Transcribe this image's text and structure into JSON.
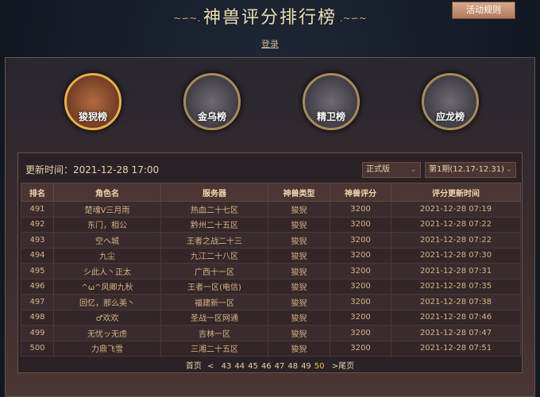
{
  "header": {
    "title": "神兽评分排行榜",
    "rules_button": "活动规则",
    "login": "登录"
  },
  "beasts": [
    {
      "label": "狻猊榜",
      "active": true
    },
    {
      "label": "金乌榜"
    },
    {
      "label": "精卫榜"
    },
    {
      "label": "应龙榜"
    }
  ],
  "panel": {
    "update_time": "更新时间：2021-12-28 17:00",
    "version_select": "正式版",
    "period_select": "第1期(12.17-12.31)"
  },
  "table": {
    "headers": [
      "排名",
      "角色名",
      "服务器",
      "神兽类型",
      "神兽评分",
      "评分更新时间"
    ],
    "rows": [
      [
        "491",
        "楚魂V三月雨",
        "热血二十七区",
        "狻猊",
        "3200",
        "2021-12-28 07:19"
      ],
      [
        "492",
        "东门，相公",
        "黔州二十五区",
        "狻猊",
        "3200",
        "2021-12-28 07:22"
      ],
      [
        "493",
        "空ヘ城",
        "王者之战二十三",
        "狻猊",
        "3200",
        "2021-12-28 07:22"
      ],
      [
        "494",
        "九尘",
        "九江二十八区",
        "狻猊",
        "3200",
        "2021-12-28 07:30"
      ],
      [
        "495",
        "シ此人丶正太",
        "广西十一区",
        "狻猊",
        "3200",
        "2021-12-28 07:31"
      ],
      [
        "496",
        "^ω^风卿九秋",
        "王者一区(电信)",
        "狻猊",
        "3200",
        "2021-12-28 07:35"
      ],
      [
        "497",
        "回忆，那么美丶",
        "福建新一区",
        "狻猊",
        "3200",
        "2021-12-28 07:38"
      ],
      [
        "498",
        "♂欢欢",
        "圣战一区网通",
        "狻猊",
        "3200",
        "2021-12-28 07:46"
      ],
      [
        "499",
        "无忧ッ无虑",
        "吉林一区",
        "狻猊",
        "3200",
        "2021-12-28 07:47"
      ],
      [
        "500",
        "力鼎飞雪",
        "三湘二十五区",
        "狻猊",
        "3200",
        "2021-12-28 07:51"
      ]
    ]
  },
  "pagination": {
    "first": "首页",
    "prev": "<",
    "pages": [
      "43",
      "44",
      "45",
      "46",
      "47",
      "48",
      "49",
      "50"
    ],
    "current": "50",
    "next": ">",
    "last": "尾页"
  }
}
